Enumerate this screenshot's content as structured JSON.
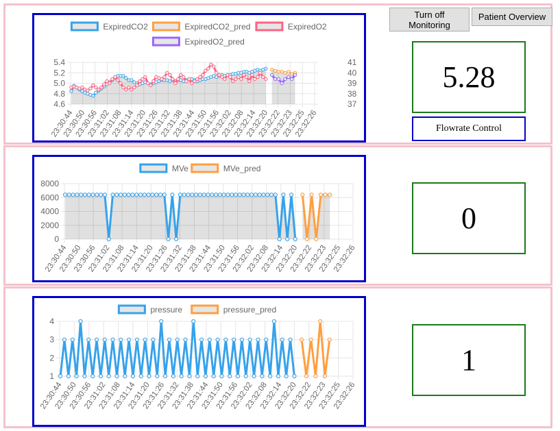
{
  "controls": {
    "monitoring_label": "Turn off Monitoring",
    "overview_label": "Patient Overview",
    "flowrate_label": "Flowrate Control"
  },
  "readouts": [
    "5.28",
    "0",
    "1"
  ],
  "x_labels": [
    "23:30:44",
    "23:30:50",
    "23:30:56",
    "23:31:02",
    "23:31:08",
    "23:31:14",
    "23:31:20",
    "23:31:26",
    "23:31:32",
    "23:31:38",
    "23:31:44",
    "23:31:50",
    "23:31:56",
    "23:32:02",
    "23:32:08",
    "23:32:14",
    "23:32:20",
    "23:32:22",
    "23:32:23",
    "23:32:25",
    "23:32:26"
  ],
  "colors": {
    "blue": "#36a2eb",
    "orange": "#ff9f40",
    "red": "#ff6384",
    "purple": "#9966ff"
  },
  "chart_data": [
    {
      "type": "line",
      "legend": [
        "ExpiredCO2",
        "ExpiredCO2_pred",
        "ExpiredO2",
        "ExpiredO2_pred"
      ],
      "y_left": {
        "range": [
          4.6,
          5.4
        ],
        "ticks": [
          "4.6",
          "4.8",
          "5.0",
          "5.2",
          "5.4"
        ]
      },
      "y_right": {
        "range": [
          37,
          41
        ],
        "ticks": [
          "37",
          "38",
          "39",
          "40",
          "41"
        ]
      },
      "series": [
        {
          "name": "ExpiredCO2",
          "color": "#36a2eb",
          "axis": "left",
          "values": [
            4.85,
            4.95,
            4.92,
            4.88,
            4.85,
            4.82,
            4.8,
            4.78,
            4.76,
            4.82,
            4.86,
            4.9,
            4.94,
            4.98,
            5.02,
            5.06,
            5.1,
            5.14,
            5.14,
            5.14,
            5.1,
            5.06,
            5.06,
            5.02,
            5.0,
            4.98,
            5.0,
            5.02,
            5.0,
            4.98,
            5.0,
            5.02,
            5.04,
            5.06,
            5.06,
            5.06,
            5.04,
            5.06,
            5.04,
            5.06,
            5.06,
            5.04,
            5.06,
            5.08,
            5.08,
            5.06,
            5.04,
            5.06,
            5.08,
            5.08,
            5.1,
            5.12,
            5.14,
            5.12,
            5.14,
            5.16,
            5.14,
            5.16,
            5.16,
            5.18,
            5.18,
            5.2,
            5.2,
            5.22,
            5.22,
            5.2,
            5.22,
            5.24,
            5.26,
            5.24,
            5.26,
            5.28
          ]
        },
        {
          "name": "ExpiredCO2_pred",
          "color": "#ff9f40",
          "axis": "left",
          "values": [
            5.26,
            5.24,
            5.22,
            5.22,
            5.2,
            5.22,
            5.18,
            5.2
          ]
        },
        {
          "name": "ExpiredO2",
          "color": "#ff6384",
          "axis": "right",
          "values": [
            38.6,
            38.7,
            38.6,
            38.5,
            38.6,
            38.4,
            38.3,
            38.5,
            38.8,
            38.6,
            38.4,
            38.6,
            38.9,
            39.2,
            39.0,
            39.4,
            39.6,
            39.3,
            39.0,
            38.6,
            38.4,
            38.6,
            38.4,
            38.6,
            38.8,
            39.2,
            39.4,
            39.6,
            39.0,
            38.8,
            39.2,
            39.6,
            39.5,
            39.4,
            39.6,
            40.0,
            39.8,
            39.4,
            39.0,
            39.4,
            39.8,
            39.6,
            39.2,
            39.4,
            39.0,
            39.2,
            39.4,
            39.6,
            39.8,
            40.2,
            40.4,
            40.8,
            40.6,
            40.0,
            39.8,
            39.6,
            39.4,
            39.8,
            39.6,
            39.2,
            39.4,
            39.6,
            39.4,
            39.8,
            39.6,
            39.2,
            39.8,
            39.4,
            39.6,
            40.0,
            39.6,
            39.4
          ]
        },
        {
          "name": "ExpiredO2_pred",
          "color": "#9966ff",
          "axis": "right",
          "values": [
            39.8,
            39.4,
            39.4,
            39.0,
            39.4,
            39.6,
            39.4,
            39.8
          ]
        }
      ]
    },
    {
      "type": "line",
      "legend": [
        "MVe",
        "MVe_pred"
      ],
      "y_left": {
        "range": [
          0,
          8000
        ],
        "ticks": [
          "0",
          "2000",
          "4000",
          "6000",
          "8000"
        ]
      },
      "series": [
        {
          "name": "MVe",
          "color": "#36a2eb",
          "axis": "left",
          "values": [
            6400,
            6400,
            6400,
            6400,
            6400,
            6400,
            6400,
            6400,
            6400,
            6400,
            6400,
            0,
            6400,
            6400,
            6400,
            6400,
            6400,
            6400,
            6400,
            6400,
            6400,
            6400,
            6400,
            6400,
            6400,
            6400,
            0,
            6400,
            0,
            6400,
            6400,
            6400,
            6400,
            6400,
            6400,
            6400,
            6400,
            6400,
            6400,
            6400,
            6400,
            6400,
            6400,
            6400,
            6400,
            6400,
            6400,
            6400,
            6400,
            6400,
            6400,
            6400,
            6400,
            6400,
            0,
            6400,
            0,
            6400,
            0
          ]
        },
        {
          "name": "MVe_pred",
          "color": "#ff9f40",
          "axis": "left",
          "values": [
            6400,
            0,
            6400,
            0,
            6400,
            6400,
            6400
          ]
        }
      ]
    },
    {
      "type": "line",
      "legend": [
        "pressure",
        "pressure_pred"
      ],
      "y_left": {
        "range": [
          1,
          4
        ],
        "ticks": [
          "1",
          "2",
          "3",
          "4"
        ]
      },
      "series": [
        {
          "name": "pressure",
          "color": "#36a2eb",
          "axis": "left",
          "values": [
            1,
            3,
            1,
            3,
            1,
            4,
            1,
            3,
            1,
            3,
            1,
            3,
            1,
            3,
            1,
            3,
            1,
            3,
            1,
            3,
            1,
            3,
            1,
            3,
            1,
            4,
            1,
            3,
            1,
            3,
            1,
            3,
            1,
            4,
            1,
            3,
            1,
            3,
            1,
            3,
            1,
            3,
            1,
            3,
            1,
            3,
            1,
            3,
            1,
            3,
            1,
            3,
            1,
            4,
            1,
            3,
            1,
            3,
            1
          ]
        },
        {
          "name": "pressure_pred",
          "color": "#ff9f40",
          "axis": "left",
          "values": [
            3,
            1,
            3,
            1,
            4,
            1,
            3
          ]
        }
      ]
    }
  ]
}
